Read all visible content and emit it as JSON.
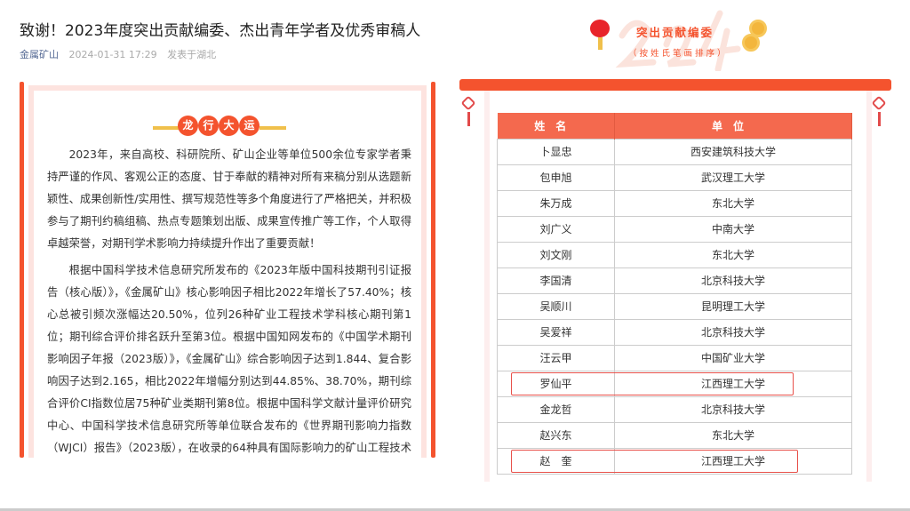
{
  "article": {
    "title": "致谢！2023年度突出贡献编委、杰出青年学者及优秀审稿人",
    "source": "金属矿山",
    "date": "2024-01-31 17:29",
    "location": "发表于湖北"
  },
  "left": {
    "banner": [
      "龙",
      "行",
      "大",
      "运"
    ],
    "paragraphs": [
      "2023年，来自高校、科研院所、矿山企业等单位500余位专家学者秉持严谨的作风、客观公正的态度、甘于奉献的精神对所有来稿分别从选题新颖性、成果创新性/实用性、撰写规范性等多个角度进行了严格把关，并积极参与了期刊约稿组稿、热点专题策划出版、成果宣传推广等工作，个人取得卓越荣誉，对期刊学术影响力持续提升作出了重要贡献！",
      "根据中国科学技术信息研究所发布的《2023年版中国科技期刊引证报告（核心版）》，《金属矿山》核心影响因子相比2022年增长了57.40%；核心总被引频次涨幅达20.50%，位列26种矿业工程技术学科核心期刊第1位；期刊综合评价排名跃升至第3位。根据中国知网发布的《中国学术期刊影响因子年报（2023版）》，《金属矿山》综合影响因子达到1.844、复合影响因子达到2.165，相比2022年增幅分别达到44.85%、38.70%，期刊综合评价CI指数位居75种矿业类期刊第8位。根据中国科学文献计量评价研究中心、中国科学技术信息研究所等单位联合发布的《世界期刊影响力指数（WJCI）报告》（2023版），在收录的64种具有国际影响力的矿山工程技术类科技期刊中，《金属矿山》排名跃升到"
    ]
  },
  "right": {
    "heading": "突出贡献编委",
    "subheading": "（按姓氏笔画排序）",
    "watermark": "2024",
    "columns": [
      "姓名",
      "单位"
    ],
    "rows": [
      [
        "卜显忠",
        "西安建筑科技大学"
      ],
      [
        "包申旭",
        "武汉理工大学"
      ],
      [
        "朱万成",
        "东北大学"
      ],
      [
        "刘广义",
        "中南大学"
      ],
      [
        "刘文刚",
        "东北大学"
      ],
      [
        "李国清",
        "北京科技大学"
      ],
      [
        "吴顺川",
        "昆明理工大学"
      ],
      [
        "吴爱祥",
        "北京科技大学"
      ],
      [
        "汪云甲",
        "中国矿业大学"
      ],
      [
        "罗仙平",
        "江西理工大学"
      ],
      [
        "金龙哲",
        "北京科技大学"
      ],
      [
        "赵兴东",
        "东北大学"
      ],
      [
        "赵　奎",
        "江西理工大学"
      ]
    ],
    "highlighted_rows": [
      9,
      12
    ]
  },
  "colors": {
    "accent": "#f4532e",
    "header": "#f4694e",
    "link": "#576b95"
  }
}
